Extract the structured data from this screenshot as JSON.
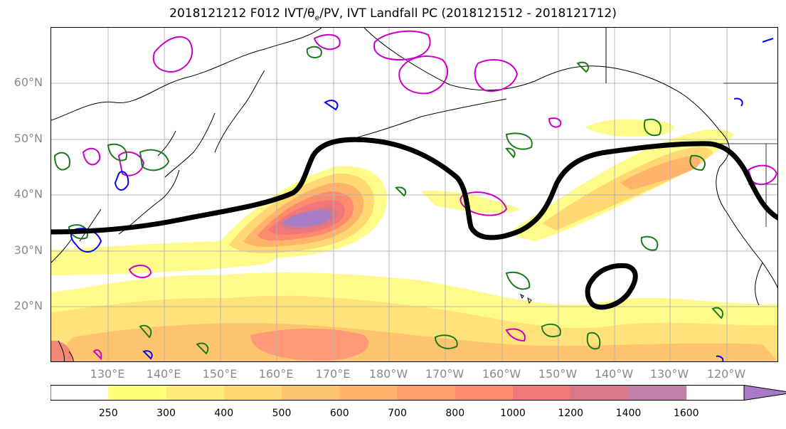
{
  "title": {
    "prefix": "2018121212 F012 IVT/θ",
    "sub": "e",
    "suffix": "/PV, IVT Landfall PC (2018121512 - 2018121712)"
  },
  "map": {
    "lat_labels": [
      "60°N",
      "50°N",
      "40°N",
      "30°N",
      "20°N"
    ],
    "lon_labels": [
      "130°E",
      "140°E",
      "150°E",
      "160°E",
      "170°E",
      "180°W",
      "170°W",
      "160°W",
      "150°W",
      "140°W",
      "130°W",
      "120°W"
    ],
    "colors": {
      "coast": "#000000",
      "grid": "#b4b4b4",
      "pv_contour": "#c800c8",
      "theta_contour": "#1a7a1a",
      "blue_contour": "#0000ff",
      "landfall_contour": "#000000"
    }
  },
  "colorbar": {
    "ticks": [
      "250",
      "300",
      "400",
      "500",
      "600",
      "700",
      "800",
      "1000",
      "1200",
      "1400",
      "1600"
    ],
    "colors": [
      "#ffffff",
      "#ffff7a",
      "#ffea7a",
      "#ffd873",
      "#ffc46e",
      "#ffb36b",
      "#ffa06a",
      "#ff8a6e",
      "#f0787a",
      "#d8788a",
      "#c080a8",
      "#a87cc4"
    ]
  }
}
